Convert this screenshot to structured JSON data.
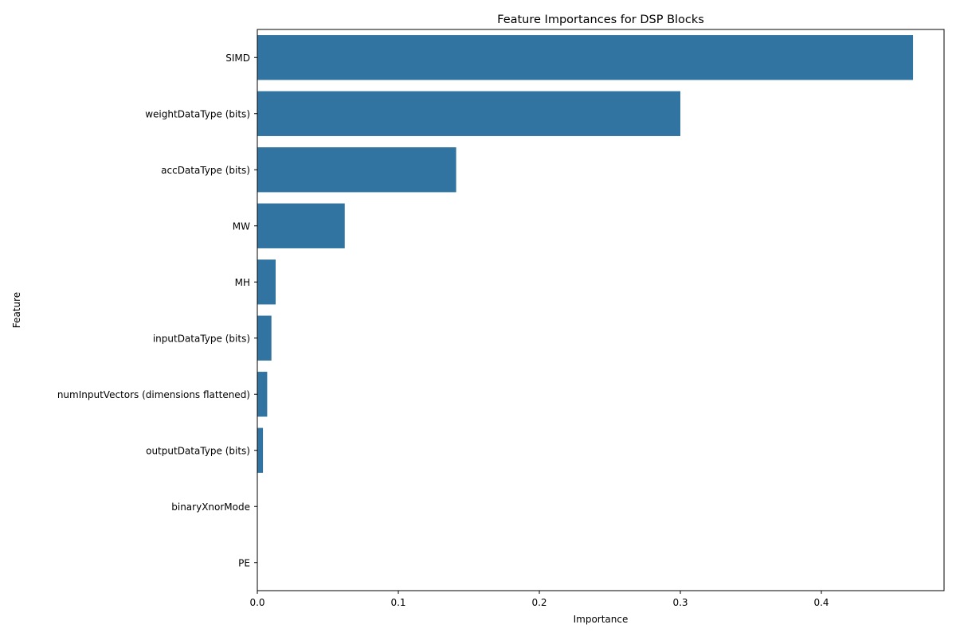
{
  "chart_data": {
    "type": "bar",
    "orientation": "horizontal",
    "title": "Feature Importances for DSP Blocks",
    "xlabel": "Importance",
    "ylabel": "Feature",
    "xlim": [
      0,
      0.487
    ],
    "xticks": [
      0.0,
      0.1,
      0.2,
      0.3,
      0.4
    ],
    "xtick_labels": [
      "0.0",
      "0.1",
      "0.2",
      "0.3",
      "0.4"
    ],
    "grid": false,
    "bar_color": "#3274a1",
    "categories": [
      "SIMD",
      "weightDataType (bits)",
      "accDataType (bits)",
      "MW",
      "MH",
      "inputDataType (bits)",
      "numInputVectors (dimensions flattened)",
      "outputDataType (bits)",
      "binaryXnorMode",
      "PE"
    ],
    "values": [
      0.465,
      0.3,
      0.141,
      0.062,
      0.013,
      0.01,
      0.007,
      0.004,
      0.0,
      0.0
    ]
  }
}
